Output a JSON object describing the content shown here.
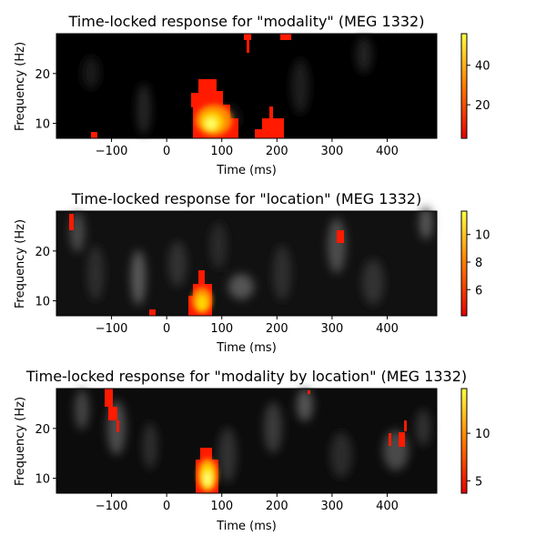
{
  "chart_data": [
    {
      "type": "heatmap",
      "title": "Time-locked response for \"modality\" (MEG 1332)",
      "xlabel": "Time (ms)",
      "ylabel": "Frequency (Hz)",
      "xlim": [
        -200,
        490
      ],
      "ylim": [
        7,
        28
      ],
      "xticks": [
        -100,
        0,
        100,
        200,
        300,
        400
      ],
      "yticks": [
        10,
        20
      ],
      "colorbar": {
        "range": [
          3,
          56
        ],
        "ticks": [
          20,
          40
        ]
      },
      "significant_regions": [
        {
          "t0": 55,
          "t1": 140,
          "f0": 7,
          "f1": 19,
          "peak": 56
        },
        {
          "t0": 170,
          "t1": 240,
          "f0": 7,
          "f1": 14,
          "peak": 10
        },
        {
          "t0": 140,
          "t1": 150,
          "f0": 25,
          "f1": 28,
          "peak": 6
        },
        {
          "t0": 210,
          "t1": 230,
          "f0": 27,
          "f1": 28,
          "peak": 6
        },
        {
          "t0": -140,
          "t1": -125,
          "f0": 7,
          "f1": 8,
          "peak": 5
        }
      ]
    },
    {
      "type": "heatmap",
      "title": "Time-locked response for \"location\" (MEG 1332)",
      "xlabel": "Time (ms)",
      "ylabel": "Frequency (Hz)",
      "xlim": [
        -200,
        490
      ],
      "ylim": [
        7,
        28
      ],
      "xticks": [
        -100,
        0,
        100,
        200,
        300,
        400
      ],
      "yticks": [
        10,
        20
      ],
      "colorbar": {
        "range": [
          4.1,
          11.7
        ],
        "ticks": [
          6,
          8,
          10
        ]
      },
      "significant_regions": [
        {
          "t0": 45,
          "t1": 90,
          "f0": 7,
          "f1": 16,
          "peak": 11.5
        },
        {
          "t0": 315,
          "t1": 330,
          "f0": 21,
          "f1": 24,
          "peak": 5
        },
        {
          "t0": -180,
          "t1": -170,
          "f0": 24,
          "f1": 28,
          "peak": 5
        },
        {
          "t0": -30,
          "t1": -15,
          "f0": 7,
          "f1": 8,
          "peak": 4.8
        }
      ]
    },
    {
      "type": "heatmap",
      "title": "Time-locked response for \"modality by location\" (MEG 1332)",
      "xlabel": "Time (ms)",
      "ylabel": "Frequency (Hz)",
      "xlim": [
        -200,
        490
      ],
      "ylim": [
        7,
        28
      ],
      "xticks": [
        -100,
        0,
        100,
        200,
        300,
        400
      ],
      "yticks": [
        10,
        20
      ],
      "colorbar": {
        "range": [
          3.7,
          14.7
        ],
        "ticks": [
          5,
          10
        ]
      },
      "significant_regions": [
        {
          "t0": 60,
          "t1": 95,
          "f0": 7,
          "f1": 16,
          "peak": 14.5
        },
        {
          "t0": -115,
          "t1": -85,
          "f0": 19,
          "f1": 28,
          "peak": 5
        },
        {
          "t0": 410,
          "t1": 450,
          "f0": 16,
          "f1": 21,
          "peak": 5
        },
        {
          "t0": 262,
          "t1": 268,
          "f0": 27,
          "f1": 28,
          "peak": 4.5
        }
      ]
    }
  ]
}
